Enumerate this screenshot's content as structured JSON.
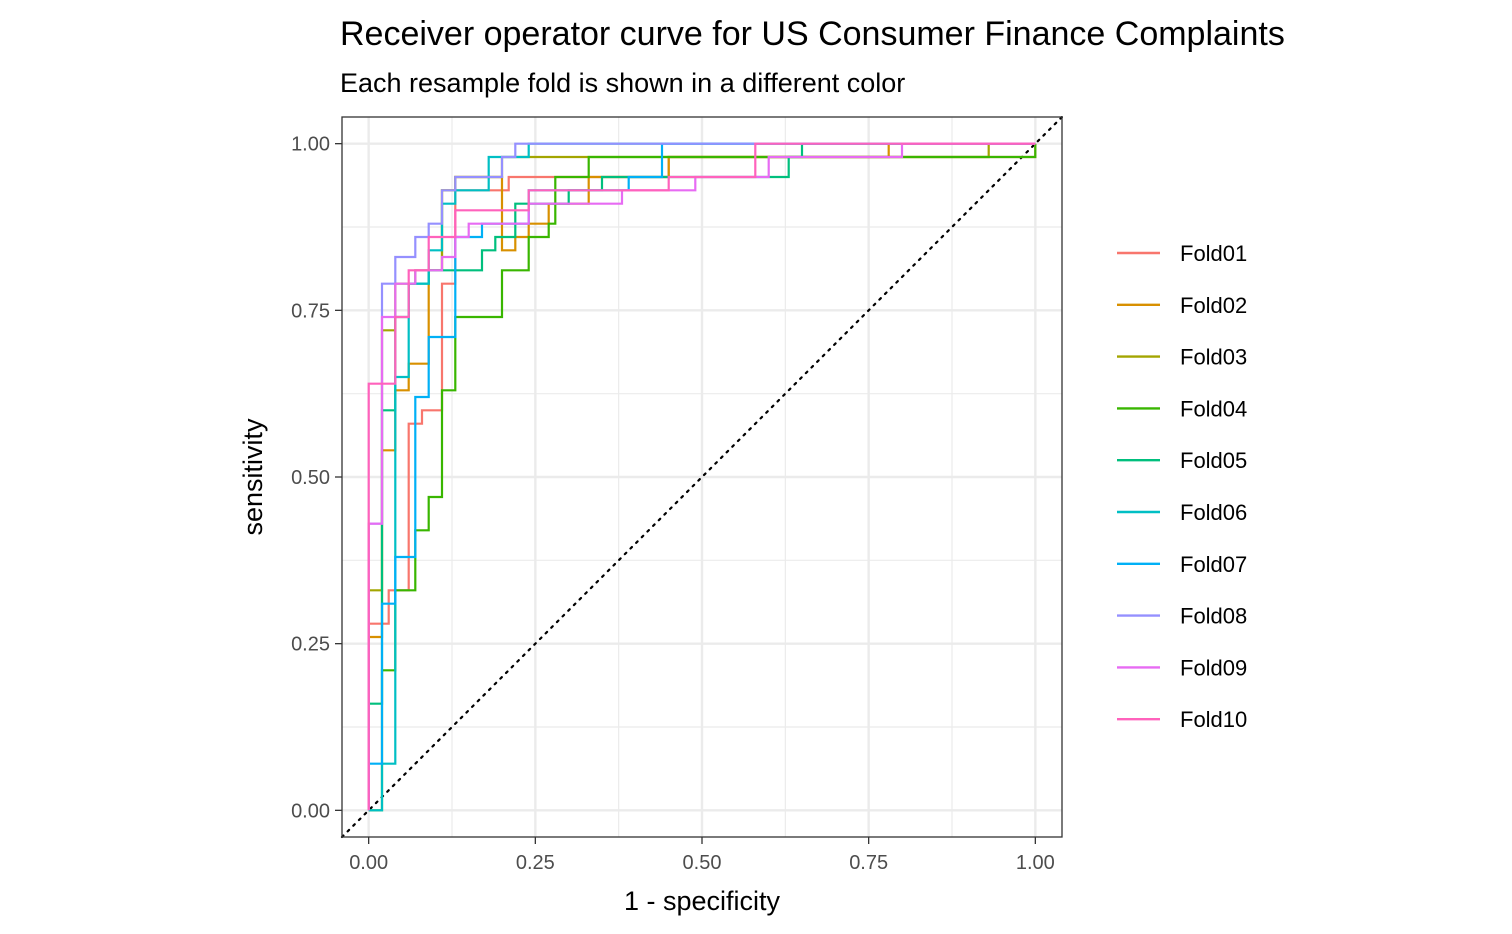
{
  "chart_data": {
    "type": "line",
    "title": "Receiver operator curve for US Consumer Finance Complaints",
    "subtitle": "Each resample fold is shown in a different color",
    "xlabel": "1 - specificity",
    "ylabel": "sensitivity",
    "xlim": [
      -0.04,
      1.04
    ],
    "ylim": [
      -0.04,
      1.04
    ],
    "x_ticks": [
      "0.00",
      "0.25",
      "0.50",
      "0.75",
      "1.00"
    ],
    "y_ticks": [
      "0.00",
      "0.25",
      "0.50",
      "0.75",
      "1.00"
    ],
    "grid": true,
    "legend_position": "right",
    "reference_line": {
      "from": [
        0,
        0
      ],
      "to": [
        1,
        1
      ],
      "style": "dotted"
    },
    "series": [
      {
        "name": "Fold01",
        "color": "#F8766D",
        "points": [
          [
            0,
            0
          ],
          [
            0,
            0.28
          ],
          [
            0.03,
            0.28
          ],
          [
            0.03,
            0.33
          ],
          [
            0.06,
            0.33
          ],
          [
            0.06,
            0.58
          ],
          [
            0.08,
            0.58
          ],
          [
            0.08,
            0.6
          ],
          [
            0.11,
            0.6
          ],
          [
            0.11,
            0.79
          ],
          [
            0.13,
            0.79
          ],
          [
            0.13,
            0.93
          ],
          [
            0.21,
            0.93
          ],
          [
            0.21,
            0.95
          ],
          [
            0.34,
            0.95
          ],
          [
            0.34,
            0.95
          ],
          [
            0.45,
            0.95
          ],
          [
            0.45,
            0.98
          ],
          [
            1,
            0.98
          ],
          [
            1,
            1
          ]
        ]
      },
      {
        "name": "Fold02",
        "color": "#D89000",
        "points": [
          [
            0,
            0
          ],
          [
            0,
            0.26
          ],
          [
            0.02,
            0.26
          ],
          [
            0.02,
            0.54
          ],
          [
            0.04,
            0.54
          ],
          [
            0.04,
            0.63
          ],
          [
            0.06,
            0.63
          ],
          [
            0.06,
            0.67
          ],
          [
            0.09,
            0.67
          ],
          [
            0.09,
            0.81
          ],
          [
            0.11,
            0.81
          ],
          [
            0.11,
            0.93
          ],
          [
            0.13,
            0.93
          ],
          [
            0.13,
            0.95
          ],
          [
            0.2,
            0.95
          ],
          [
            0.2,
            0.84
          ],
          [
            0.22,
            0.84
          ],
          [
            0.22,
            0.86
          ],
          [
            0.24,
            0.86
          ],
          [
            0.24,
            0.88
          ],
          [
            0.27,
            0.88
          ],
          [
            0.27,
            0.91
          ],
          [
            0.33,
            0.91
          ],
          [
            0.33,
            0.95
          ],
          [
            0.45,
            0.95
          ],
          [
            0.45,
            0.98
          ],
          [
            0.78,
            0.98
          ],
          [
            0.78,
            1
          ],
          [
            1,
            1
          ]
        ]
      },
      {
        "name": "Fold03",
        "color": "#A3A500",
        "points": [
          [
            0,
            0
          ],
          [
            0,
            0.33
          ],
          [
            0.02,
            0.33
          ],
          [
            0.02,
            0.72
          ],
          [
            0.04,
            0.72
          ],
          [
            0.04,
            0.79
          ],
          [
            0.07,
            0.79
          ],
          [
            0.07,
            0.81
          ],
          [
            0.11,
            0.81
          ],
          [
            0.11,
            0.93
          ],
          [
            0.13,
            0.93
          ],
          [
            0.13,
            0.95
          ],
          [
            0.2,
            0.95
          ],
          [
            0.2,
            0.98
          ],
          [
            0.93,
            0.98
          ],
          [
            0.93,
            1
          ],
          [
            1,
            1
          ]
        ]
      },
      {
        "name": "Fold04",
        "color": "#39B600",
        "points": [
          [
            0,
            0
          ],
          [
            0.02,
            0
          ],
          [
            0.02,
            0.21
          ],
          [
            0.04,
            0.21
          ],
          [
            0.04,
            0.33
          ],
          [
            0.07,
            0.33
          ],
          [
            0.07,
            0.42
          ],
          [
            0.09,
            0.42
          ],
          [
            0.09,
            0.47
          ],
          [
            0.11,
            0.47
          ],
          [
            0.11,
            0.63
          ],
          [
            0.13,
            0.63
          ],
          [
            0.13,
            0.74
          ],
          [
            0.2,
            0.74
          ],
          [
            0.2,
            0.81
          ],
          [
            0.24,
            0.81
          ],
          [
            0.24,
            0.86
          ],
          [
            0.27,
            0.86
          ],
          [
            0.27,
            0.88
          ],
          [
            0.28,
            0.88
          ],
          [
            0.28,
            0.95
          ],
          [
            0.33,
            0.95
          ],
          [
            0.33,
            0.98
          ],
          [
            1,
            0.98
          ],
          [
            1,
            1
          ]
        ]
      },
      {
        "name": "Fold05",
        "color": "#00BF7D",
        "points": [
          [
            0,
            0
          ],
          [
            0,
            0.16
          ],
          [
            0.02,
            0.16
          ],
          [
            0.02,
            0.6
          ],
          [
            0.04,
            0.6
          ],
          [
            0.04,
            0.74
          ],
          [
            0.06,
            0.74
          ],
          [
            0.06,
            0.79
          ],
          [
            0.09,
            0.79
          ],
          [
            0.09,
            0.81
          ],
          [
            0.17,
            0.81
          ],
          [
            0.17,
            0.84
          ],
          [
            0.19,
            0.84
          ],
          [
            0.19,
            0.86
          ],
          [
            0.22,
            0.86
          ],
          [
            0.22,
            0.91
          ],
          [
            0.3,
            0.91
          ],
          [
            0.3,
            0.93
          ],
          [
            0.35,
            0.93
          ],
          [
            0.35,
            0.95
          ],
          [
            0.63,
            0.95
          ],
          [
            0.63,
            0.98
          ],
          [
            0.65,
            0.98
          ],
          [
            0.65,
            1
          ],
          [
            1,
            1
          ]
        ]
      },
      {
        "name": "Fold06",
        "color": "#00BFC4",
        "points": [
          [
            0,
            0
          ],
          [
            0.02,
            0
          ],
          [
            0.02,
            0.07
          ],
          [
            0.04,
            0.07
          ],
          [
            0.04,
            0.65
          ],
          [
            0.06,
            0.65
          ],
          [
            0.06,
            0.79
          ],
          [
            0.09,
            0.79
          ],
          [
            0.09,
            0.84
          ],
          [
            0.11,
            0.84
          ],
          [
            0.11,
            0.91
          ],
          [
            0.13,
            0.91
          ],
          [
            0.13,
            0.93
          ],
          [
            0.18,
            0.93
          ],
          [
            0.18,
            0.98
          ],
          [
            0.24,
            0.98
          ],
          [
            0.24,
            1
          ],
          [
            1,
            1
          ]
        ]
      },
      {
        "name": "Fold07",
        "color": "#00B0F6",
        "points": [
          [
            0,
            0
          ],
          [
            0,
            0.07
          ],
          [
            0.02,
            0.07
          ],
          [
            0.02,
            0.31
          ],
          [
            0.04,
            0.31
          ],
          [
            0.04,
            0.38
          ],
          [
            0.07,
            0.38
          ],
          [
            0.07,
            0.62
          ],
          [
            0.09,
            0.62
          ],
          [
            0.09,
            0.71
          ],
          [
            0.13,
            0.71
          ],
          [
            0.13,
            0.86
          ],
          [
            0.17,
            0.86
          ],
          [
            0.17,
            0.88
          ],
          [
            0.24,
            0.88
          ],
          [
            0.24,
            0.93
          ],
          [
            0.39,
            0.93
          ],
          [
            0.39,
            0.95
          ],
          [
            0.44,
            0.95
          ],
          [
            0.44,
            1
          ],
          [
            1,
            1
          ]
        ]
      },
      {
        "name": "Fold08",
        "color": "#9590FF",
        "points": [
          [
            0,
            0
          ],
          [
            0,
            0.43
          ],
          [
            0.02,
            0.43
          ],
          [
            0.02,
            0.79
          ],
          [
            0.04,
            0.79
          ],
          [
            0.04,
            0.83
          ],
          [
            0.07,
            0.83
          ],
          [
            0.07,
            0.86
          ],
          [
            0.09,
            0.86
          ],
          [
            0.09,
            0.88
          ],
          [
            0.11,
            0.88
          ],
          [
            0.11,
            0.93
          ],
          [
            0.13,
            0.93
          ],
          [
            0.13,
            0.95
          ],
          [
            0.2,
            0.95
          ],
          [
            0.2,
            0.98
          ],
          [
            0.22,
            0.98
          ],
          [
            0.22,
            1
          ],
          [
            1,
            1
          ]
        ]
      },
      {
        "name": "Fold09",
        "color": "#E76BF3",
        "points": [
          [
            0,
            0
          ],
          [
            0,
            0.43
          ],
          [
            0.02,
            0.43
          ],
          [
            0.02,
            0.74
          ],
          [
            0.04,
            0.74
          ],
          [
            0.04,
            0.79
          ],
          [
            0.07,
            0.79
          ],
          [
            0.07,
            0.81
          ],
          [
            0.11,
            0.81
          ],
          [
            0.11,
            0.83
          ],
          [
            0.13,
            0.83
          ],
          [
            0.13,
            0.86
          ],
          [
            0.15,
            0.86
          ],
          [
            0.15,
            0.88
          ],
          [
            0.24,
            0.88
          ],
          [
            0.24,
            0.91
          ],
          [
            0.38,
            0.91
          ],
          [
            0.38,
            0.93
          ],
          [
            0.49,
            0.93
          ],
          [
            0.49,
            0.95
          ],
          [
            0.6,
            0.95
          ],
          [
            0.6,
            0.98
          ],
          [
            0.8,
            0.98
          ],
          [
            0.8,
            1
          ],
          [
            1,
            1
          ]
        ]
      },
      {
        "name": "Fold10",
        "color": "#FF62BC",
        "points": [
          [
            0,
            0
          ],
          [
            0,
            0.64
          ],
          [
            0.04,
            0.64
          ],
          [
            0.04,
            0.74
          ],
          [
            0.06,
            0.74
          ],
          [
            0.06,
            0.81
          ],
          [
            0.09,
            0.81
          ],
          [
            0.09,
            0.86
          ],
          [
            0.13,
            0.86
          ],
          [
            0.13,
            0.9
          ],
          [
            0.24,
            0.9
          ],
          [
            0.24,
            0.93
          ],
          [
            0.45,
            0.93
          ],
          [
            0.45,
            0.95
          ],
          [
            0.58,
            0.95
          ],
          [
            0.58,
            1
          ],
          [
            1,
            1
          ]
        ]
      }
    ]
  }
}
